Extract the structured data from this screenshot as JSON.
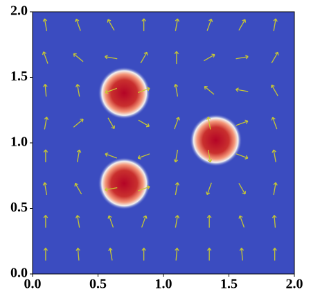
{
  "chart_data": {
    "type": "heatmap-quiver",
    "xlim": [
      0,
      2
    ],
    "ylim": [
      0,
      2
    ],
    "xticks": [
      {
        "value": 0,
        "label": "0.0"
      },
      {
        "value": 0.5,
        "label": "0.5"
      },
      {
        "value": 1,
        "label": "1.0"
      },
      {
        "value": 1.5,
        "label": "1.5"
      },
      {
        "value": 2,
        "label": "2.0"
      }
    ],
    "yticks": [
      {
        "value": 0,
        "label": "0.0"
      },
      {
        "value": 0.5,
        "label": "0.5"
      },
      {
        "value": 1,
        "label": "1.0"
      },
      {
        "value": 1.5,
        "label": "1.5"
      },
      {
        "value": 2,
        "label": "2.0"
      }
    ],
    "background_color": "#3b4cc0",
    "blobs": {
      "x": [
        0.7,
        1.4,
        0.7
      ],
      "y": [
        1.38,
        1.02,
        0.69
      ],
      "r": [
        0.16,
        0.16,
        0.16
      ]
    },
    "quiver": {
      "color": "#c8c832",
      "x": [
        0.1,
        0.35,
        0.6,
        0.85,
        1.1,
        1.35,
        1.6,
        1.85
      ],
      "y": [
        1.9,
        1.65,
        1.4,
        1.15,
        0.9,
        0.65,
        0.4,
        0.15
      ],
      "angle": [
        [
          100,
          110,
          120,
          90,
          80,
          70,
          60,
          80
        ],
        [
          110,
          140,
          170,
          60,
          90,
          30,
          10,
          60
        ],
        [
          95,
          100,
          200,
          20,
          100,
          140,
          170,
          120
        ],
        [
          80,
          40,
          300,
          330,
          70,
          100,
          20,
          110
        ],
        [
          90,
          80,
          160,
          200,
          260,
          280,
          340,
          100
        ],
        [
          100,
          120,
          190,
          20,
          80,
          250,
          300,
          80
        ],
        [
          90,
          100,
          110,
          70,
          80,
          90,
          110,
          95
        ],
        [
          90,
          95,
          100,
          90,
          85,
          90,
          95,
          90
        ]
      ]
    }
  }
}
